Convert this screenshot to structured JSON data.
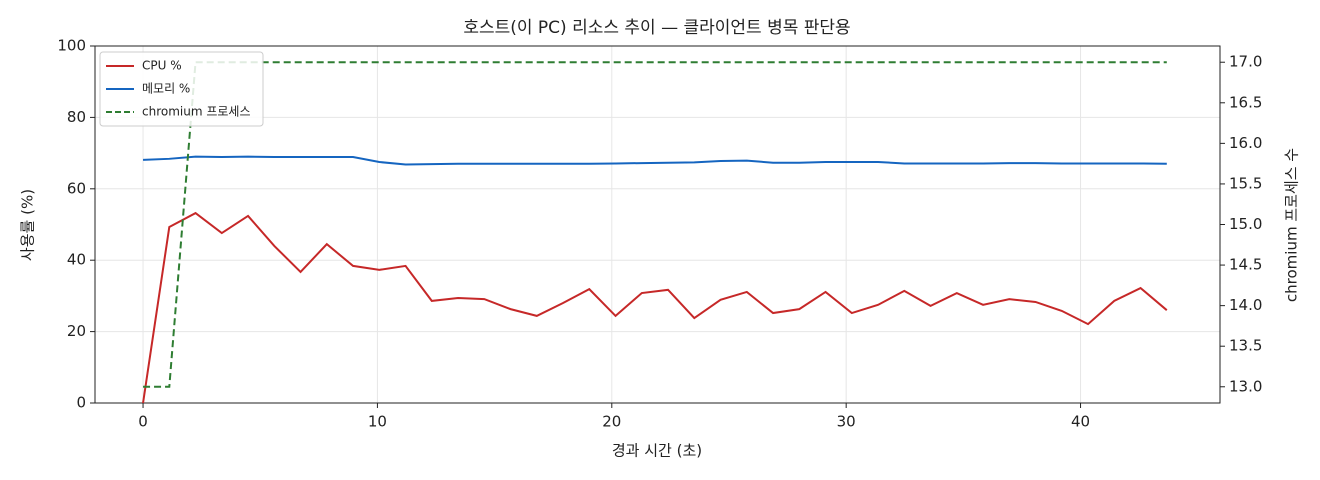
{
  "chart_data": {
    "type": "line",
    "title": "호스트(이 PC) 리소스 추이 — 클라이언트 병목 판단용",
    "xlabel": "경과 시간 (초)",
    "ylabel": "사용률 (%)",
    "y2label": "chromium 프로세스 수",
    "x": [
      0,
      1.12,
      2.24,
      3.36,
      4.48,
      5.6,
      6.72,
      7.84,
      8.96,
      10.08,
      11.2,
      12.32,
      13.44,
      14.56,
      15.68,
      16.8,
      17.92,
      19.04,
      20.16,
      21.28,
      22.4,
      23.52,
      24.64,
      25.76,
      26.88,
      28,
      29.12,
      30.24,
      31.36,
      32.48,
      33.6,
      34.72,
      35.84,
      36.96,
      38.08,
      39.2,
      40.32,
      41.44,
      42.56,
      43.68
    ],
    "series": [
      {
        "name": "CPU %",
        "color": "#c62828",
        "dash": false,
        "values": [
          0,
          49.3,
          53.2,
          47.6,
          52.4,
          44,
          36.7,
          44.5,
          38.4,
          37.3,
          38.4,
          28.6,
          29.4,
          29.1,
          26.3,
          24.4,
          28,
          31.9,
          24.4,
          30.8,
          31.7,
          23.8,
          28.9,
          31.1,
          25.2,
          26.3,
          31.1,
          25.2,
          27.5,
          31.4,
          27.2,
          30.8,
          27.5,
          29.1,
          28.3,
          25.8,
          22.1,
          28.6,
          32.2,
          26
        ]
      },
      {
        "name": "메모리 %",
        "color": "#1565c0",
        "dash": false,
        "values": [
          68.1,
          68.4,
          69,
          68.9,
          69,
          68.9,
          68.9,
          68.9,
          68.9,
          67.5,
          66.8,
          66.9,
          67,
          67,
          67,
          67,
          67,
          67,
          67.1,
          67.2,
          67.3,
          67.4,
          67.8,
          67.9,
          67.3,
          67.3,
          67.5,
          67.5,
          67.5,
          67.1,
          67.1,
          67.1,
          67.1,
          67.2,
          67.2,
          67.1,
          67.1,
          67.1,
          67.1,
          67.0
        ]
      },
      {
        "name": "chromium 프로세스",
        "color": "#2e7d32",
        "dash": true,
        "axis": "y2",
        "values": [
          13,
          13,
          17,
          17,
          17,
          17,
          17,
          17,
          17,
          17,
          17,
          17,
          17,
          17,
          17,
          17,
          17,
          17,
          17,
          17,
          17,
          17,
          17,
          17,
          17,
          17,
          17,
          17,
          17,
          17,
          17,
          17,
          17,
          17,
          17,
          17,
          17,
          17,
          17,
          17
        ]
      }
    ],
    "xlim": [
      -2.05,
      45.95
    ],
    "xticks": [
      0,
      10,
      20,
      30,
      40
    ],
    "ylim": [
      0,
      100
    ],
    "yticks": [
      0,
      20,
      40,
      60,
      80,
      100
    ],
    "y2lim": [
      12.8,
      17.2
    ],
    "y2ticks": [
      {
        "value": 13,
        "label": "13.0"
      },
      13.5,
      {
        "value": 14,
        "label": "14.0"
      },
      14.5,
      {
        "value": 15,
        "label": "15.0"
      },
      15.5,
      {
        "value": 16,
        "label": "16.0"
      },
      16.5,
      {
        "value": 17,
        "label": "17.0"
      }
    ],
    "grid": true,
    "legend": "upper left"
  }
}
